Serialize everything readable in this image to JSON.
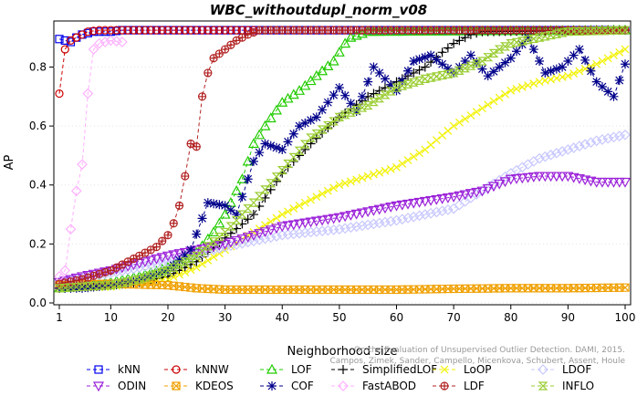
{
  "chart_data": {
    "type": "line",
    "title": "WBC_withoutdupl_norm_v08",
    "xlabel": "Neighborhood size",
    "ylabel": "AP",
    "xlim": [
      1,
      100
    ],
    "ylim": [
      0,
      0.95
    ],
    "xticks": [
      1,
      10,
      20,
      30,
      40,
      50,
      60,
      70,
      80,
      90,
      100
    ],
    "yticks": [
      0.0,
      0.2,
      0.4,
      0.6,
      0.8
    ],
    "credit": "Campos, Zimek, Sander, Campello, Micenkova, Schubert, Assent, Houle",
    "credit_line1": "On the Evaluation of Unsupervised Outlier Detection. DAMI, 2015.",
    "series": [
      {
        "name": "kNN",
        "color": "#0000ee",
        "marker": "square",
        "points": [
          [
            1,
            0.895
          ],
          [
            2,
            0.89
          ],
          [
            3,
            0.885
          ],
          [
            4,
            0.9
          ],
          [
            5,
            0.91
          ],
          [
            6,
            0.915
          ],
          [
            7,
            0.92
          ],
          [
            8,
            0.92
          ],
          [
            10,
            0.92
          ],
          [
            12,
            0.925
          ],
          [
            100,
            0.925
          ]
        ]
      },
      {
        "name": "kNNW",
        "color": "#cc0000",
        "marker": "circle",
        "points": [
          [
            1,
            0.71
          ],
          [
            2,
            0.86
          ],
          [
            3,
            0.89
          ],
          [
            4,
            0.9
          ],
          [
            5,
            0.91
          ],
          [
            6,
            0.92
          ],
          [
            8,
            0.925
          ],
          [
            100,
            0.925
          ]
        ]
      },
      {
        "name": "LOF",
        "color": "#22cc00",
        "marker": "triangle",
        "points": [
          [
            1,
            0.05
          ],
          [
            5,
            0.06
          ],
          [
            10,
            0.07
          ],
          [
            15,
            0.09
          ],
          [
            20,
            0.12
          ],
          [
            25,
            0.17
          ],
          [
            28,
            0.24
          ],
          [
            30,
            0.3
          ],
          [
            33,
            0.42
          ],
          [
            35,
            0.54
          ],
          [
            37,
            0.6
          ],
          [
            40,
            0.68
          ],
          [
            43,
            0.72
          ],
          [
            46,
            0.77
          ],
          [
            49,
            0.82
          ],
          [
            51,
            0.88
          ],
          [
            52,
            0.9
          ],
          [
            55,
            0.92
          ],
          [
            100,
            0.925
          ]
        ]
      },
      {
        "name": "SimplifiedLOF",
        "color": "#000000",
        "marker": "plus",
        "points": [
          [
            1,
            0.05
          ],
          [
            5,
            0.055
          ],
          [
            10,
            0.06
          ],
          [
            15,
            0.07
          ],
          [
            20,
            0.09
          ],
          [
            25,
            0.14
          ],
          [
            30,
            0.22
          ],
          [
            35,
            0.3
          ],
          [
            40,
            0.44
          ],
          [
            45,
            0.54
          ],
          [
            50,
            0.63
          ],
          [
            55,
            0.7
          ],
          [
            60,
            0.75
          ],
          [
            65,
            0.8
          ],
          [
            68,
            0.85
          ],
          [
            70,
            0.88
          ],
          [
            73,
            0.91
          ],
          [
            75,
            0.92
          ],
          [
            100,
            0.925
          ]
        ]
      },
      {
        "name": "LoOP",
        "color": "#f2f200",
        "marker": "cross",
        "points": [
          [
            1,
            0.05
          ],
          [
            10,
            0.055
          ],
          [
            20,
            0.08
          ],
          [
            25,
            0.12
          ],
          [
            30,
            0.18
          ],
          [
            40,
            0.3
          ],
          [
            45,
            0.35
          ],
          [
            50,
            0.4
          ],
          [
            55,
            0.43
          ],
          [
            60,
            0.46
          ],
          [
            65,
            0.52
          ],
          [
            70,
            0.6
          ],
          [
            75,
            0.66
          ],
          [
            80,
            0.72
          ],
          [
            85,
            0.75
          ],
          [
            90,
            0.77
          ],
          [
            95,
            0.81
          ],
          [
            100,
            0.86
          ]
        ]
      },
      {
        "name": "LDOF",
        "color": "#c8c8ff",
        "marker": "diamond",
        "points": [
          [
            1,
            0.07
          ],
          [
            10,
            0.1
          ],
          [
            20,
            0.14
          ],
          [
            30,
            0.19
          ],
          [
            40,
            0.23
          ],
          [
            50,
            0.25
          ],
          [
            60,
            0.28
          ],
          [
            70,
            0.32
          ],
          [
            75,
            0.38
          ],
          [
            80,
            0.44
          ],
          [
            85,
            0.49
          ],
          [
            90,
            0.52
          ],
          [
            95,
            0.55
          ],
          [
            100,
            0.57
          ]
        ]
      },
      {
        "name": "ODIN",
        "color": "#9a20d8",
        "marker": "triangle-down",
        "points": [
          [
            1,
            0.07
          ],
          [
            5,
            0.09
          ],
          [
            10,
            0.11
          ],
          [
            20,
            0.16
          ],
          [
            30,
            0.2
          ],
          [
            40,
            0.26
          ],
          [
            50,
            0.29
          ],
          [
            60,
            0.33
          ],
          [
            70,
            0.36
          ],
          [
            75,
            0.38
          ],
          [
            80,
            0.42
          ],
          [
            85,
            0.43
          ],
          [
            90,
            0.43
          ],
          [
            95,
            0.41
          ],
          [
            100,
            0.41
          ]
        ]
      },
      {
        "name": "KDEOS",
        "color": "#f0a000",
        "marker": "square-x",
        "points": [
          [
            1,
            0.06
          ],
          [
            10,
            0.065
          ],
          [
            20,
            0.06
          ],
          [
            25,
            0.05
          ],
          [
            30,
            0.045
          ],
          [
            40,
            0.045
          ],
          [
            50,
            0.045
          ],
          [
            60,
            0.045
          ],
          [
            70,
            0.048
          ],
          [
            80,
            0.05
          ],
          [
            90,
            0.05
          ],
          [
            100,
            0.052
          ]
        ]
      },
      {
        "name": "COF",
        "color": "#00008b",
        "marker": "star",
        "points": [
          [
            1,
            0.05
          ],
          [
            5,
            0.05
          ],
          [
            10,
            0.06
          ],
          [
            15,
            0.08
          ],
          [
            20,
            0.11
          ],
          [
            24,
            0.18
          ],
          [
            27,
            0.34
          ],
          [
            30,
            0.33
          ],
          [
            32,
            0.3
          ],
          [
            35,
            0.48
          ],
          [
            37,
            0.54
          ],
          [
            40,
            0.52
          ],
          [
            43,
            0.6
          ],
          [
            46,
            0.63
          ],
          [
            50,
            0.73
          ],
          [
            53,
            0.65
          ],
          [
            56,
            0.8
          ],
          [
            60,
            0.72
          ],
          [
            63,
            0.82
          ],
          [
            66,
            0.84
          ],
          [
            70,
            0.78
          ],
          [
            73,
            0.84
          ],
          [
            76,
            0.77
          ],
          [
            80,
            0.83
          ],
          [
            83,
            0.9
          ],
          [
            86,
            0.78
          ],
          [
            89,
            0.8
          ],
          [
            92,
            0.86
          ],
          [
            95,
            0.75
          ],
          [
            98,
            0.7
          ],
          [
            100,
            0.81
          ]
        ]
      },
      {
        "name": "FastABOD",
        "color": "#ffb0ff",
        "marker": "diamond",
        "points": [
          [
            1,
            0.09
          ],
          [
            2,
            0.11
          ],
          [
            3,
            0.25
          ],
          [
            4,
            0.38
          ],
          [
            5,
            0.47
          ],
          [
            6,
            0.71
          ],
          [
            7,
            0.86
          ],
          [
            8,
            0.88
          ],
          [
            10,
            0.89
          ],
          [
            12,
            0.885
          ]
        ]
      },
      {
        "name": "LDF",
        "color": "#b22222",
        "marker": "circle-plus",
        "points": [
          [
            1,
            0.065
          ],
          [
            5,
            0.08
          ],
          [
            10,
            0.11
          ],
          [
            12,
            0.13
          ],
          [
            14,
            0.15
          ],
          [
            16,
            0.17
          ],
          [
            18,
            0.19
          ],
          [
            20,
            0.23
          ],
          [
            21,
            0.27
          ],
          [
            22,
            0.33
          ],
          [
            23,
            0.43
          ],
          [
            24,
            0.54
          ],
          [
            25,
            0.53
          ],
          [
            26,
            0.7
          ],
          [
            27,
            0.78
          ],
          [
            28,
            0.83
          ],
          [
            30,
            0.86
          ],
          [
            32,
            0.89
          ],
          [
            34,
            0.91
          ],
          [
            36,
            0.925
          ],
          [
            100,
            0.925
          ]
        ]
      },
      {
        "name": "INFLO",
        "color": "#9acd32",
        "marker": "hourglass",
        "points": [
          [
            1,
            0.05
          ],
          [
            5,
            0.055
          ],
          [
            10,
            0.06
          ],
          [
            15,
            0.08
          ],
          [
            20,
            0.11
          ],
          [
            25,
            0.16
          ],
          [
            30,
            0.24
          ],
          [
            35,
            0.34
          ],
          [
            40,
            0.45
          ],
          [
            45,
            0.56
          ],
          [
            50,
            0.63
          ],
          [
            55,
            0.67
          ],
          [
            60,
            0.73
          ],
          [
            65,
            0.76
          ],
          [
            70,
            0.78
          ],
          [
            75,
            0.82
          ],
          [
            78,
            0.86
          ],
          [
            80,
            0.88
          ],
          [
            85,
            0.9
          ],
          [
            90,
            0.92
          ],
          [
            100,
            0.925
          ]
        ]
      }
    ],
    "legend_rows": [
      [
        "kNN",
        "kNNW",
        "LOF",
        "SimplifiedLOF",
        "LoOP",
        "LDOF"
      ],
      [
        "ODIN",
        "KDEOS",
        "COF",
        "FastABOD",
        "LDF",
        "INFLO"
      ]
    ]
  }
}
